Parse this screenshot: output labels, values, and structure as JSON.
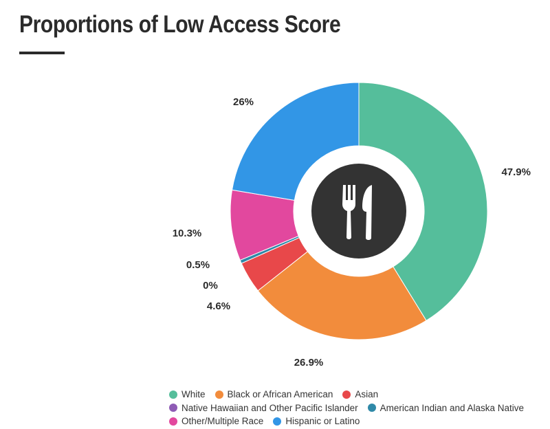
{
  "title": "Proportions of Low Access Score",
  "colors": {
    "title": "#2b2b2b",
    "center_icon_bg": "#333333",
    "label": "#2b2b2b"
  },
  "center_icon": "fork-knife-icon",
  "chart_data": {
    "type": "pie",
    "style": "donut",
    "title": "Proportions of Low Access Score",
    "legend_position": "bottom",
    "slices": [
      {
        "name": "White",
        "value": 47.9,
        "label": "47.9%",
        "color": "#55be9b"
      },
      {
        "name": "Black or African American",
        "value": 26.9,
        "label": "26.9%",
        "color": "#f28c3c"
      },
      {
        "name": "Asian",
        "value": 4.6,
        "label": "4.6%",
        "color": "#e8484a"
      },
      {
        "name": "Native Hawaiian and Other Pacific Islander",
        "value": 0,
        "label": "0%",
        "color": "#8e5bb5"
      },
      {
        "name": "American Indian and Alaska Native",
        "value": 0.5,
        "label": "0.5%",
        "color": "#2f89a8"
      },
      {
        "name": "Other/Multiple Race",
        "value": 10.3,
        "label": "10.3%",
        "color": "#e2489e"
      },
      {
        "name": "Hispanic or Latino",
        "value": 26,
        "label": "26%",
        "color": "#3296e6"
      }
    ]
  }
}
